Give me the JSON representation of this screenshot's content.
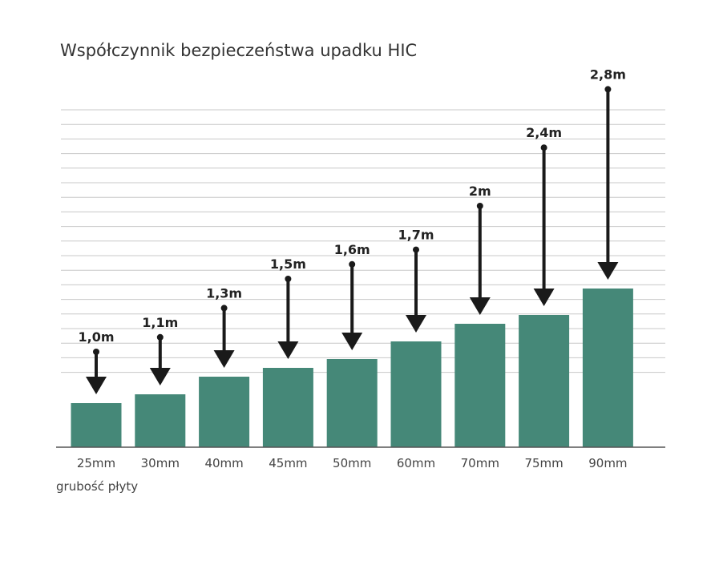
{
  "chart_data": {
    "type": "bar",
    "title": "Współczynnik bezpieczeństwa upadku HIC",
    "xlabel": "grubość płyty",
    "ylabel": "",
    "categories": [
      "25mm",
      "30mm",
      "40mm",
      "45mm",
      "50mm",
      "60mm",
      "70mm",
      "75mm",
      "90mm"
    ],
    "thickness_mm": [
      25,
      30,
      40,
      45,
      50,
      60,
      70,
      75,
      90
    ],
    "fall_height_m": [
      1.0,
      1.1,
      1.3,
      1.5,
      1.6,
      1.7,
      2.0,
      2.4,
      2.8
    ],
    "fall_height_labels": [
      "1,0m",
      "1,1m",
      "1,3m",
      "1,5m",
      "1,6m",
      "1,7m",
      "2m",
      "2,4m",
      "2,8m"
    ],
    "grid": true,
    "bar_color": "#458878",
    "arrow_color": "#1a1a1a",
    "grid_color": "#c8c8c8"
  }
}
